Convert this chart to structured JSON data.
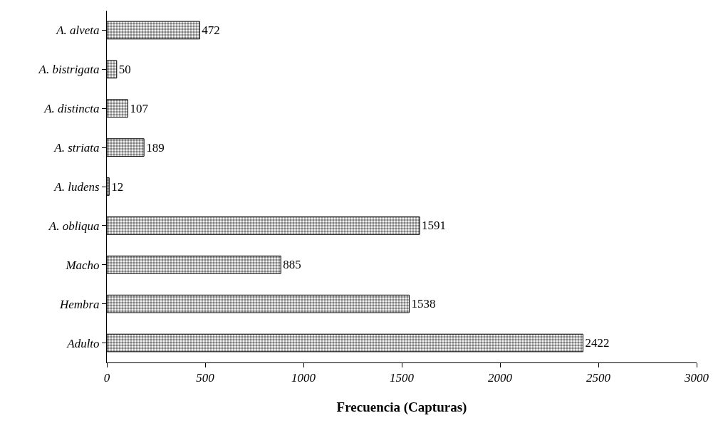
{
  "chart_data": {
    "type": "bar",
    "orientation": "horizontal",
    "xlabel": "Frecuencia (Capturas)",
    "categories": [
      "A. alveta",
      "A. bistrigata",
      "A. distincta",
      "A. striata",
      "A. ludens",
      "A. obliqua",
      "Macho",
      "Hembra",
      "Adulto"
    ],
    "values": [
      472,
      50,
      107,
      189,
      12,
      1591,
      885,
      1538,
      2422
    ],
    "color": "#000000",
    "xlim": [
      0,
      3000
    ],
    "xticks": [
      0,
      500,
      1000,
      1500,
      2000,
      2500,
      3000
    ],
    "data_labels": true
  }
}
